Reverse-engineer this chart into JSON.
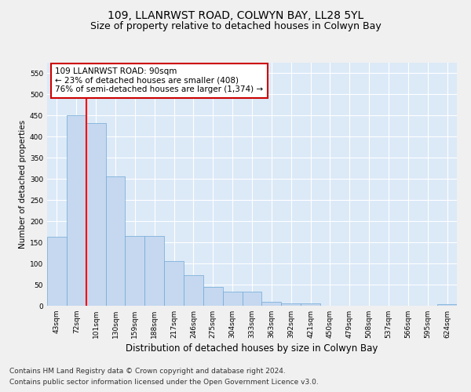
{
  "title": "109, LLANRWST ROAD, COLWYN BAY, LL28 5YL",
  "subtitle": "Size of property relative to detached houses in Colwyn Bay",
  "xlabel": "Distribution of detached houses by size in Colwyn Bay",
  "ylabel": "Number of detached properties",
  "categories": [
    "43sqm",
    "72sqm",
    "101sqm",
    "130sqm",
    "159sqm",
    "188sqm",
    "217sqm",
    "246sqm",
    "275sqm",
    "304sqm",
    "333sqm",
    "363sqm",
    "392sqm",
    "421sqm",
    "450sqm",
    "479sqm",
    "508sqm",
    "537sqm",
    "566sqm",
    "595sqm",
    "624sqm"
  ],
  "values": [
    163,
    450,
    433,
    306,
    165,
    165,
    106,
    73,
    44,
    33,
    33,
    9,
    6,
    6,
    0,
    0,
    0,
    0,
    0,
    0,
    3
  ],
  "bar_color": "#c5d8f0",
  "bar_edge_color": "#6fa8d4",
  "red_line_x": 1.5,
  "annotation_text": "109 LLANRWST ROAD: 90sqm\n← 23% of detached houses are smaller (408)\n76% of semi-detached houses are larger (1,374) →",
  "annotation_box_color": "#ffffff",
  "annotation_box_edge": "#cc0000",
  "ylim": [
    0,
    575
  ],
  "yticks": [
    0,
    50,
    100,
    150,
    200,
    250,
    300,
    350,
    400,
    450,
    500,
    550
  ],
  "footer1": "Contains HM Land Registry data © Crown copyright and database right 2024.",
  "footer2": "Contains public sector information licensed under the Open Government Licence v3.0.",
  "fig_bg_color": "#f0f0f0",
  "bg_color": "#dce9f7",
  "grid_color": "#ffffff",
  "title_fontsize": 10,
  "subtitle_fontsize": 9,
  "xlabel_fontsize": 8.5,
  "ylabel_fontsize": 7.5,
  "tick_fontsize": 6.5,
  "footer_fontsize": 6.5,
  "annot_fontsize": 7.5
}
